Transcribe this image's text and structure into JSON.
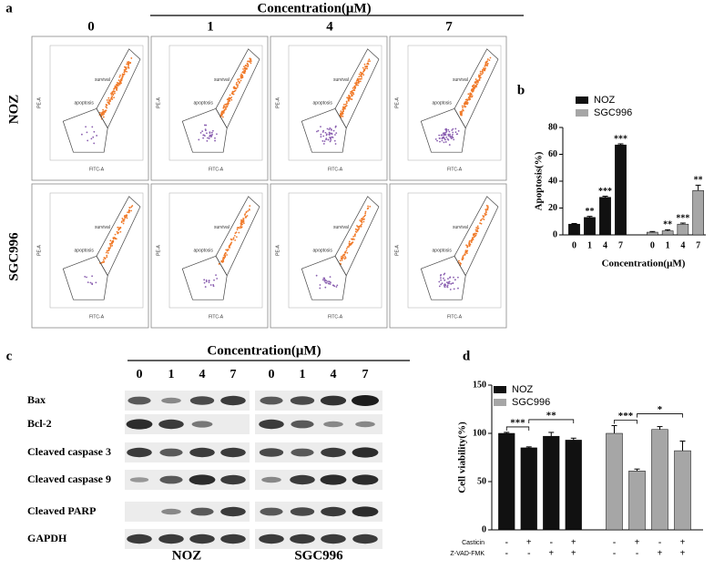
{
  "panel_a": {
    "label": "a",
    "title": "Concentration(μM)",
    "columns": [
      "0",
      "1",
      "4",
      "7"
    ],
    "rows": [
      "NOZ",
      "SGC996"
    ],
    "gates": [
      "survival",
      "apoptosis"
    ],
    "x_axis": "FITC-A",
    "y_axis": "PE-A"
  },
  "panel_c": {
    "label": "c",
    "title": "Concentration(μM)",
    "lanes": [
      "0",
      "1",
      "4",
      "7",
      "0",
      "1",
      "4",
      "7"
    ],
    "proteins": [
      "Bax",
      "Bcl-2",
      "Cleaved caspase 3",
      "Cleaved caspase 9",
      "Cleaved PARP",
      "GAPDH"
    ],
    "groups": [
      "NOZ",
      "SGC996"
    ]
  },
  "chart_data": [
    {
      "type": "bar",
      "panel_label": "b",
      "ylabel": "Apoptosis(%)",
      "xlabel": "Concentration(μM)",
      "categories": [
        "0",
        "1",
        "4",
        "7"
      ],
      "ylim": [
        0,
        80
      ],
      "yticks": [
        0,
        20,
        40,
        60,
        80
      ],
      "legend": "upper left",
      "series": [
        {
          "name": "NOZ",
          "color": "#111111",
          "values": [
            8,
            13,
            28,
            67
          ],
          "errors": [
            0.5,
            0.8,
            0.8,
            0.8
          ],
          "annotations": [
            null,
            "**",
            "***",
            "***"
          ]
        },
        {
          "name": "SGC996",
          "color": "#a6a6a6",
          "values": [
            2,
            3,
            8,
            33
          ],
          "errors": [
            0.5,
            0.8,
            0.8,
            4
          ],
          "annotations": [
            null,
            "**",
            "***",
            "**"
          ]
        }
      ]
    },
    {
      "type": "bar",
      "panel_label": "d",
      "ylabel": "Cell viability(%)",
      "ylim": [
        0,
        150
      ],
      "yticks": [
        0,
        50,
        100,
        150
      ],
      "legend": "upper left",
      "treatments": [
        {
          "name": "Casticin",
          "values": [
            "-",
            "+",
            "-",
            "+"
          ]
        },
        {
          "name": "Z-VAD-FMK",
          "values": [
            "-",
            "-",
            "+",
            "+"
          ]
        }
      ],
      "series": [
        {
          "name": "NOZ",
          "color": "#111111",
          "values": [
            100,
            85,
            97,
            93
          ],
          "errors": [
            1,
            1,
            4,
            2
          ],
          "annotations": [
            null,
            "***",
            null,
            "**"
          ]
        },
        {
          "name": "SGC996",
          "color": "#a6a6a6",
          "values": [
            100,
            61,
            104,
            82
          ],
          "errors": [
            8,
            2,
            3,
            10
          ],
          "annotations": [
            null,
            "***",
            null,
            "*"
          ]
        }
      ]
    }
  ]
}
